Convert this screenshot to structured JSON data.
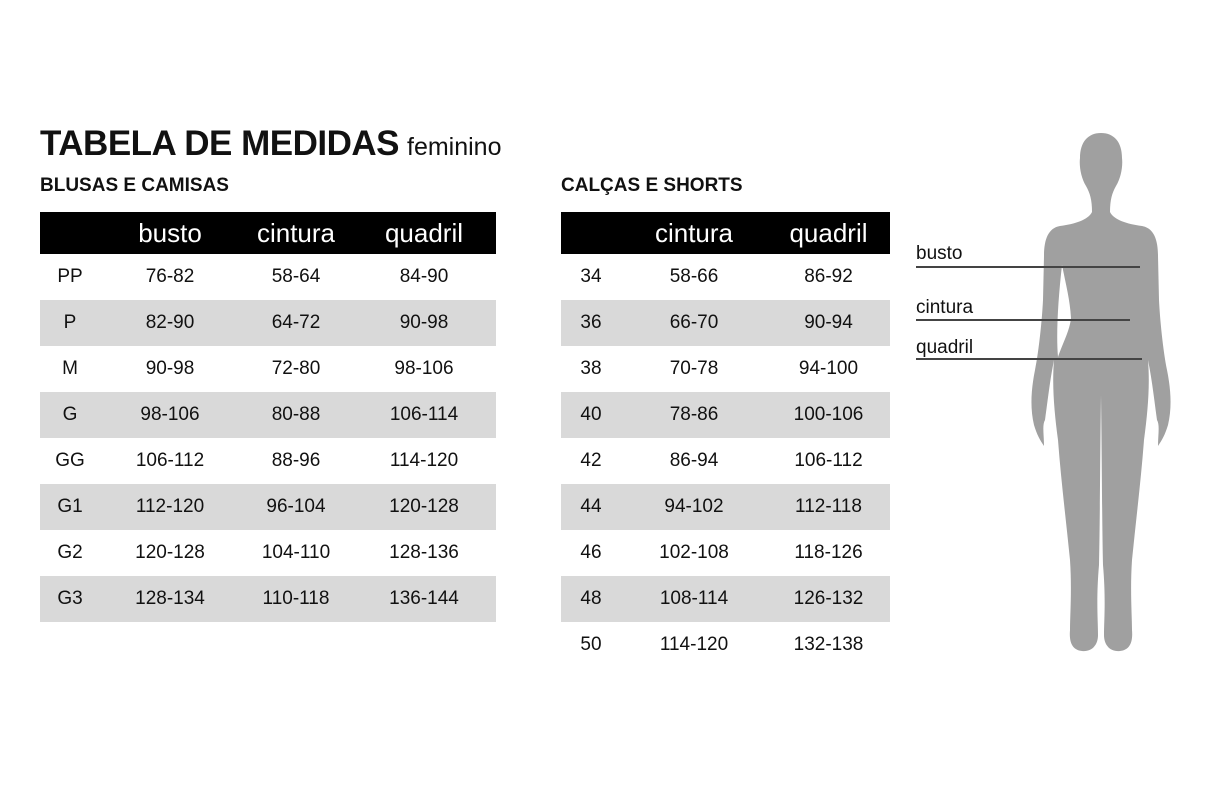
{
  "title": {
    "main": "TABELA DE MEDIDAS",
    "sub": "feminino"
  },
  "tops": {
    "heading": "BLUSAS E CAMISAS",
    "columns": [
      "",
      "busto",
      "cintura",
      "quadril"
    ],
    "rows": [
      [
        "PP",
        "76-82",
        "58-64",
        "84-90"
      ],
      [
        "P",
        "82-90",
        "64-72",
        "90-98"
      ],
      [
        "M",
        "90-98",
        "72-80",
        "98-106"
      ],
      [
        "G",
        "98-106",
        "80-88",
        "106-114"
      ],
      [
        "GG",
        "106-112",
        "88-96",
        "114-120"
      ],
      [
        "G1",
        "112-120",
        "96-104",
        "120-128"
      ],
      [
        "G2",
        "120-128",
        "104-110",
        "128-136"
      ],
      [
        "G3",
        "128-134",
        "110-118",
        "136-144"
      ]
    ]
  },
  "bottoms": {
    "heading": "CALÇAS E SHORTS",
    "columns": [
      "",
      "cintura",
      "quadril"
    ],
    "rows": [
      [
        "34",
        "58-66",
        "86-92"
      ],
      [
        "36",
        "66-70",
        "90-94"
      ],
      [
        "38",
        "70-78",
        "94-100"
      ],
      [
        "40",
        "78-86",
        "100-106"
      ],
      [
        "42",
        "86-94",
        "106-112"
      ],
      [
        "44",
        "94-102",
        "112-118"
      ],
      [
        "46",
        "102-108",
        "118-126"
      ],
      [
        "48",
        "108-114",
        "126-132"
      ],
      [
        "50",
        "114-120",
        "132-138"
      ]
    ]
  },
  "figure": {
    "labels": [
      "busto",
      "cintura",
      "quadril"
    ],
    "color": "#a0a0a0"
  }
}
